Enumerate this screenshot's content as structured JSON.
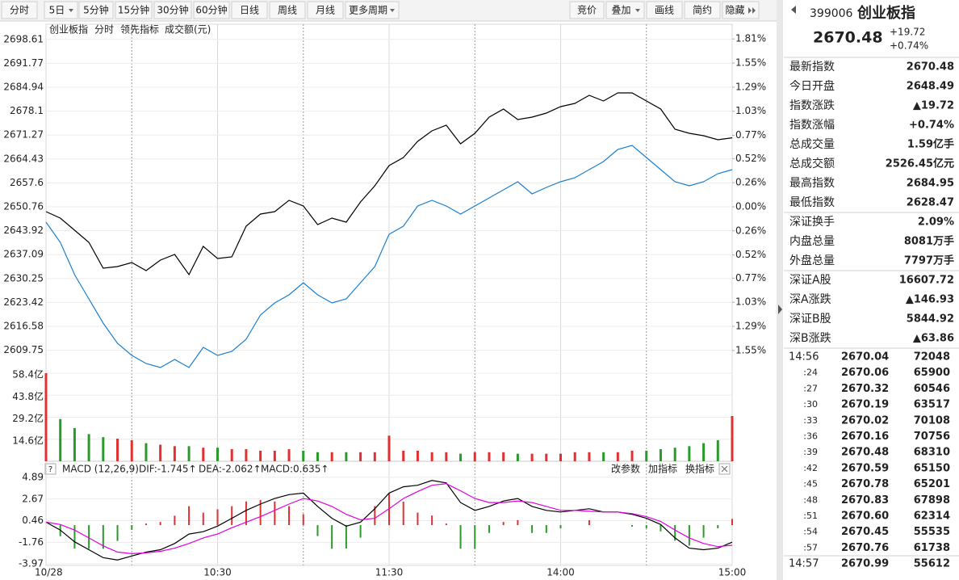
{
  "toolbar": {
    "left": [
      "分时",
      "5日",
      "5分钟",
      "15分钟",
      "30分钟",
      "60分钟",
      "日线",
      "周线",
      "月线",
      "更多周期"
    ],
    "right": [
      "竞价",
      "叠加",
      "画线",
      "简约",
      "隐藏"
    ]
  },
  "quote": {
    "code": "399006",
    "name": "创业板指",
    "price": "2670.48",
    "change": "+19.72",
    "pct": "+0.74%",
    "rows": [
      {
        "label": "最新指数",
        "value": "2670.48",
        "color": "#e00000"
      },
      {
        "label": "今日开盘",
        "value": "2648.49",
        "color": "#008800"
      },
      {
        "label": "指数涨跌",
        "value": "▲19.72",
        "color": "#e00000"
      },
      {
        "label": "指数涨幅",
        "value": "+0.74%",
        "color": "#e00000"
      },
      {
        "label": "总成交量",
        "value": "1.59亿手",
        "color": "#000000"
      },
      {
        "label": "总成交额",
        "value": "2526.45亿元",
        "color": "#0066cc"
      },
      {
        "label": "最高指数",
        "value": "2684.95",
        "color": "#e00000"
      },
      {
        "label": "最低指数",
        "value": "2628.47",
        "color": "#008800"
      },
      {
        "label": "深证换手",
        "value": "2.09%",
        "color": "#000000"
      },
      {
        "label": "内盘总量",
        "value": "8081万手",
        "color": "#008800"
      },
      {
        "label": "外盘总量",
        "value": "7797万手",
        "color": "#e00000"
      },
      {
        "label": "深证A股",
        "value": "16607.72",
        "color": "#e00000"
      },
      {
        "label": "深A涨跌",
        "value": "▲146.93",
        "color": "#e00000"
      },
      {
        "label": "深证B股",
        "value": "5844.92",
        "color": "#e00000"
      },
      {
        "label": "深B涨跌",
        "value": "▲63.86",
        "color": "#e00000"
      }
    ],
    "ticks": [
      {
        "time": "14:56",
        "price": "2670.04",
        "volume": "72048",
        "color": "#e00000"
      },
      {
        "time": ":24",
        "price": "2670.06",
        "volume": "65900",
        "color": "#e00000"
      },
      {
        "time": ":27",
        "price": "2670.32",
        "volume": "60546",
        "color": "#e00000"
      },
      {
        "time": ":30",
        "price": "2670.19",
        "volume": "63517",
        "color": "#008800"
      },
      {
        "time": ":33",
        "price": "2670.02",
        "volume": "70108",
        "color": "#008800"
      },
      {
        "time": ":36",
        "price": "2670.16",
        "volume": "70756",
        "color": "#e00000"
      },
      {
        "time": ":39",
        "price": "2670.48",
        "volume": "68310",
        "color": "#e00000"
      },
      {
        "time": ":42",
        "price": "2670.59",
        "volume": "65150",
        "color": "#e00000"
      },
      {
        "time": ":45",
        "price": "2670.78",
        "volume": "65201",
        "color": "#e00000"
      },
      {
        "time": ":48",
        "price": "2670.83",
        "volume": "67898",
        "color": "#e00000"
      },
      {
        "time": ":51",
        "price": "2670.60",
        "volume": "62314",
        "color": "#008800"
      },
      {
        "time": ":54",
        "price": "2670.45",
        "volume": "55535",
        "color": "#008800"
      },
      {
        "time": ":57",
        "price": "2670.76",
        "volume": "61738",
        "color": "#e00000"
      },
      {
        "time": "14:57",
        "price": "2670.99",
        "volume": "55612",
        "color": "#e00000"
      }
    ]
  },
  "chart_data": [
    {
      "type": "line",
      "mode_label": "分时",
      "xlim": [
        0,
        240
      ],
      "x": [
        0,
        5,
        10,
        15,
        20,
        25,
        30,
        35,
        40,
        45,
        50,
        55,
        60,
        65,
        70,
        75,
        80,
        85,
        90,
        95,
        100,
        105,
        110,
        115,
        120,
        125,
        130,
        135,
        140,
        145,
        150,
        155,
        160,
        165,
        170,
        175,
        180,
        185,
        190,
        195,
        200,
        205,
        210,
        215,
        220,
        225,
        230,
        235,
        240
      ],
      "xticks": [
        {
          "value": 0,
          "label": "10/28"
        },
        {
          "value": 60,
          "label": "10:30"
        },
        {
          "value": 120,
          "label": "11:30"
        },
        {
          "value": 180,
          "label": "14:00"
        },
        {
          "value": 240,
          "label": "15:00"
        }
      ],
      "xminor": [
        30,
        90,
        150,
        210
      ],
      "ylim": [
        2603.19,
        2700.18
      ],
      "yticks": [
        2698.61,
        2691.77,
        2684.94,
        2678.1,
        2671.27,
        2664.43,
        2657.6,
        2650.76,
        2643.92,
        2637.09,
        2630.25,
        2623.42,
        2616.58,
        2609.75
      ],
      "y2lim": [
        -1.795,
        1.864
      ],
      "y2ticks": [
        {
          "value": 1.81,
          "label": "1.81%"
        },
        {
          "value": 1.55,
          "label": "1.55%"
        },
        {
          "value": 1.29,
          "label": "1.29%"
        },
        {
          "value": 1.03,
          "label": "1.03%"
        },
        {
          "value": 0.77,
          "label": "0.77%"
        },
        {
          "value": 0.52,
          "label": "0.52%"
        },
        {
          "value": 0.26,
          "label": "0.26%"
        },
        {
          "value": 0,
          "label": "0.00%"
        },
        {
          "value": -0.26,
          "label": "0.26%"
        },
        {
          "value": -0.52,
          "label": "0.52%"
        },
        {
          "value": -0.77,
          "label": "0.77%"
        },
        {
          "value": -1.03,
          "label": "1.03%"
        },
        {
          "value": -1.29,
          "label": "1.29%"
        },
        {
          "value": -1.55,
          "label": "1.55%"
        }
      ],
      "grid": true,
      "series": [
        {
          "name": "创业板指",
          "color": "#000000",
          "values": [
            2649.37,
            2647.52,
            2644.06,
            2640.59,
            2633.21,
            2633.67,
            2634.83,
            2632.52,
            2635.52,
            2637.14,
            2631.36,
            2639.45,
            2635.98,
            2636.44,
            2645.22,
            2648.68,
            2649.37,
            2652.61,
            2650.99,
            2645.68,
            2647.52,
            2646.37,
            2652.15,
            2656.76,
            2662.54,
            2664.85,
            2669.46,
            2672.47,
            2674.08,
            2668.77,
            2671.77,
            2676.39,
            2678.7,
            2675.7,
            2676.39,
            2677.55,
            2679.39,
            2680.32,
            2682.63,
            2681.01,
            2683.32,
            2683.32,
            2681.01,
            2678.7,
            2672.93,
            2671.77,
            2671.08,
            2669.93,
            2670.48
          ]
        },
        {
          "name": "领先指标",
          "color": "#1a7fd0",
          "values": [
            2646.37,
            2640.6,
            2631.36,
            2624.44,
            2617.51,
            2611.74,
            2608.27,
            2605.96,
            2604.81,
            2607.12,
            2604.81,
            2610.58,
            2608.27,
            2609.43,
            2612.89,
            2619.82,
            2623.28,
            2625.59,
            2629.05,
            2625.59,
            2623.28,
            2624.44,
            2629.05,
            2633.67,
            2642.91,
            2645.22,
            2650.99,
            2652.61,
            2650.99,
            2648.68,
            2650.99,
            2653.3,
            2655.61,
            2657.92,
            2654.45,
            2656.3,
            2657.92,
            2659.07,
            2661.38,
            2663.69,
            2667.15,
            2668.31,
            2664.85,
            2661.38,
            2657.92,
            2656.76,
            2657.92,
            2660.23,
            2661.38
          ]
        }
      ]
    },
    {
      "type": "bar",
      "title": "成交额(元)",
      "xlim": [
        0,
        240
      ],
      "x": [
        0,
        5,
        10,
        15,
        20,
        25,
        30,
        35,
        40,
        45,
        50,
        55,
        60,
        65,
        70,
        75,
        80,
        85,
        90,
        95,
        100,
        105,
        110,
        115,
        120,
        125,
        130,
        135,
        140,
        145,
        150,
        155,
        160,
        165,
        170,
        175,
        180,
        185,
        190,
        195,
        200,
        205,
        210,
        215,
        220,
        225,
        230,
        235,
        240
      ],
      "ylim": [
        0,
        58.4
      ],
      "yticks": [
        {
          "value": 58.4,
          "label": "58.4亿"
        },
        {
          "value": 43.8,
          "label": "43.8亿"
        },
        {
          "value": 29.2,
          "label": "29.2亿"
        },
        {
          "value": 14.6,
          "label": "14.6亿"
        }
      ],
      "values": [
        58.4,
        28,
        22,
        18,
        16,
        15,
        14,
        12,
        11,
        10,
        10,
        9,
        9,
        8,
        8,
        7,
        7,
        8,
        7,
        6,
        6,
        6,
        6,
        6,
        17,
        7,
        7,
        6,
        6,
        5,
        6,
        6,
        6,
        5,
        5,
        5,
        5,
        6,
        6,
        6,
        6,
        7,
        7,
        8,
        9,
        10,
        12,
        14,
        30
      ]
    },
    {
      "type": "macd",
      "title": "MACD (12,26,9)",
      "buttons": [
        "改参数",
        "加指标",
        "换指标"
      ],
      "xlim": [
        0,
        240
      ],
      "x": [
        0,
        5,
        10,
        15,
        20,
        25,
        30,
        35,
        40,
        45,
        50,
        55,
        60,
        65,
        70,
        75,
        80,
        85,
        90,
        95,
        100,
        105,
        110,
        115,
        120,
        125,
        130,
        135,
        140,
        145,
        150,
        155,
        160,
        165,
        170,
        175,
        180,
        185,
        190,
        195,
        200,
        205,
        210,
        215,
        220,
        225,
        230,
        235,
        240
      ],
      "ylim": [
        -4.13,
        5.13
      ],
      "yticks": [
        4.89,
        2.67,
        0.46,
        -1.76,
        -3.97
      ],
      "series": [
        {
          "name": "DIF:-1.745↑",
          "color": "#000000",
          "values": [
            0.3,
            -0.51,
            -1.71,
            -2.52,
            -3.33,
            -3.57,
            -3.16,
            -2.76,
            -2.52,
            -1.88,
            -0.91,
            -0.67,
            -0.1,
            0.7,
            1.51,
            2.15,
            2.72,
            3.12,
            3.28,
            1.91,
            0.7,
            -0.1,
            0.3,
            1.67,
            3.28,
            3.92,
            4.08,
            4.57,
            4.32,
            2.31,
            1.51,
            1.91,
            2.47,
            2.72,
            1.91,
            1.51,
            1.34,
            1.51,
            1.67,
            1.34,
            1.34,
            1.1,
            0.7,
            0.06,
            -1.31,
            -2.36,
            -2.52,
            -2.36,
            -1.745
          ]
        },
        {
          "name": "DEA:-2.062↑",
          "color": "#e000e0",
          "values": [
            0.3,
            0.06,
            -0.51,
            -1.31,
            -2.12,
            -2.76,
            -2.92,
            -2.84,
            -2.68,
            -2.36,
            -1.88,
            -1.31,
            -0.91,
            -0.27,
            0.3,
            0.86,
            1.51,
            2.15,
            2.72,
            2.47,
            1.91,
            1.1,
            0.54,
            0.7,
            1.67,
            2.72,
            3.44,
            4.08,
            4.24,
            3.52,
            2.72,
            2.31,
            2.31,
            2.47,
            2.31,
            1.91,
            1.51,
            1.51,
            1.42,
            1.34,
            1.34,
            1.18,
            0.86,
            0.38,
            -0.51,
            -1.31,
            -1.88,
            -2.2,
            -2.062
          ]
        },
        {
          "name": "MACD:0.635↑",
          "color": "#e03030",
          "values": [
            0,
            -1.14,
            -2.4,
            -2.42,
            -2.42,
            -1.62,
            -0.48,
            0.16,
            0.32,
            0.96,
            1.94,
            1.28,
            1.62,
            1.94,
            2.42,
            2.58,
            2.42,
            1.94,
            1.12,
            -1.12,
            -2.42,
            -2.4,
            -1.28,
            1.94,
            3.22,
            2.4,
            1.28,
            0.98,
            0.16,
            -2.42,
            -2.42,
            -0.8,
            0.32,
            0.5,
            -0.8,
            -0.8,
            -0.34,
            0,
            0.5,
            0,
            0,
            -0.16,
            -0.32,
            -0.64,
            -1.6,
            -2.1,
            -1.28,
            -0.32,
            0.635
          ]
        }
      ]
    }
  ]
}
